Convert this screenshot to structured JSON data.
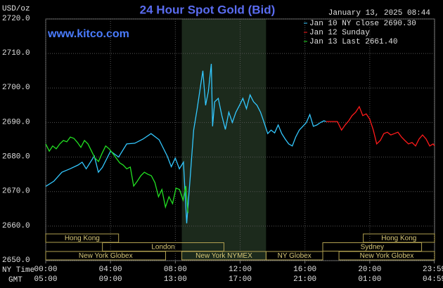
{
  "chart_data": {
    "type": "line",
    "title": "24 Hour Spot Gold (Bid)",
    "y_label": "USD/oz",
    "timestamp": "January 13, 2025 08:44",
    "site": "www.kitco.com",
    "x_label": "NY Time",
    "x2_label": "GMT",
    "xlim": [
      0,
      24
    ],
    "ylim": [
      2650,
      2720
    ],
    "yticks": [
      {
        "value": 2650,
        "label": "2650.0"
      },
      {
        "value": 2660,
        "label": "2660.0"
      },
      {
        "value": 2670,
        "label": "2670.0"
      },
      {
        "value": 2680,
        "label": "2680.0"
      },
      {
        "value": 2690,
        "label": "2690.0"
      },
      {
        "value": 2700,
        "label": "2700.0"
      },
      {
        "value": 2710,
        "label": "2710.0"
      },
      {
        "value": 2720,
        "label": "2720.0"
      }
    ],
    "xticks": [
      {
        "value": 0,
        "label": "00:00"
      },
      {
        "value": 4,
        "label": "04:00"
      },
      {
        "value": 8,
        "label": "08:00"
      },
      {
        "value": 12,
        "label": "12:00"
      },
      {
        "value": 16,
        "label": "16:00"
      },
      {
        "value": 20,
        "label": "20:00"
      },
      {
        "value": 23.98,
        "label": "23:59"
      }
    ],
    "x2ticks": [
      {
        "value": 0,
        "label": "05:00"
      },
      {
        "value": 4,
        "label": "09:00"
      },
      {
        "value": 8,
        "label": "13:00"
      },
      {
        "value": 12,
        "label": "17:00"
      },
      {
        "value": 16,
        "label": "21:00"
      },
      {
        "value": 20,
        "label": "01:00"
      },
      {
        "value": 23.98,
        "label": "04:59"
      }
    ],
    "grid": true,
    "series": [
      {
        "name": "Jan 10 NY close 2690.30",
        "color": "#33c8ff",
        "x": [
          0,
          0.5,
          1,
          1.5,
          2,
          2.25,
          2.5,
          3,
          3.25,
          3.5,
          4,
          4.5,
          5,
          5.5,
          6,
          6.5,
          7,
          7.5,
          7.75,
          8,
          8.25,
          8.5,
          8.7,
          8.91,
          9.13,
          9.35,
          9.57,
          9.7,
          9.87,
          10.04,
          10.22,
          10.3,
          10.43,
          10.65,
          10.87,
          11.09,
          11.3,
          11.52,
          11.74,
          11.96,
          12.17,
          12.39,
          12.61,
          12.83,
          13.04,
          13.26,
          13.48,
          13.7,
          13.91,
          14.13,
          14.35,
          14.57,
          14.78,
          15,
          15.22,
          15.43,
          15.65,
          15.87,
          16.09,
          16.3,
          16.52,
          16.74,
          16.96,
          17.17,
          17.3
        ],
        "values": [
          2671.5,
          2673,
          2675.6,
          2676.6,
          2677.7,
          2678.5,
          2676.6,
          2680.3,
          2675.6,
          2677,
          2681.7,
          2680,
          2683.8,
          2684,
          2685.2,
          2686.8,
          2685,
          2680.3,
          2677.2,
          2679.7,
          2676.6,
          2678.5,
          2660.8,
          2673.6,
          2687.8,
          2694,
          2701,
          2705,
          2695,
          2699,
          2707,
          2688.9,
          2696,
          2697,
          2692,
          2688,
          2693,
          2690,
          2693,
          2695,
          2697,
          2694,
          2698,
          2696,
          2695,
          2693,
          2690,
          2686.8,
          2687.8,
          2687,
          2689.3,
          2686.8,
          2685.2,
          2683.8,
          2683.2,
          2685.8,
          2687.8,
          2688.9,
          2690,
          2692.3,
          2688.9,
          2689.3,
          2690,
          2690.5,
          2690.3
        ]
      },
      {
        "name": "Jan 12 Sunday",
        "color": "#ff1a1a",
        "x": [
          17.3,
          18,
          18.26,
          18.48,
          18.7,
          18.91,
          19.13,
          19.35,
          19.57,
          19.78,
          20,
          20.22,
          20.43,
          20.65,
          20.87,
          21.09,
          21.3,
          21.52,
          21.74,
          21.96,
          22.17,
          22.39,
          22.61,
          22.83,
          23.04,
          23.26,
          23.48,
          23.7,
          23.91,
          24
        ],
        "values": [
          2690.3,
          2690.3,
          2687.8,
          2689.3,
          2690.5,
          2692,
          2693,
          2694.6,
          2692,
          2692.5,
          2691,
          2687.8,
          2683.8,
          2684.8,
          2686.8,
          2687.2,
          2686.4,
          2686.8,
          2687.2,
          2685.8,
          2684.8,
          2683.8,
          2684.2,
          2683.2,
          2685.2,
          2686.4,
          2685.2,
          2683.2,
          2683.8,
          2683.2
        ]
      },
      {
        "name": "Jan 13 Last 2661.40",
        "color": "#22e022",
        "x": [
          0,
          0.22,
          0.43,
          0.65,
          0.87,
          1.09,
          1.3,
          1.52,
          1.74,
          1.96,
          2.17,
          2.39,
          2.61,
          2.83,
          3.04,
          3.26,
          3.48,
          3.7,
          3.91,
          4.13,
          4.35,
          4.57,
          4.78,
          5,
          5.22,
          5.43,
          5.65,
          5.87,
          6.09,
          6.3,
          6.52,
          6.74,
          6.96,
          7.17,
          7.39,
          7.61,
          7.83,
          8.04,
          8.26,
          8.48,
          8.65,
          8.78
        ],
        "values": [
          2683.8,
          2681.7,
          2683.2,
          2682.4,
          2683.8,
          2684.8,
          2684.4,
          2685.8,
          2685.4,
          2684.2,
          2682.8,
          2684.8,
          2683.8,
          2681.7,
          2679.7,
          2678.7,
          2681.1,
          2683.2,
          2682.4,
          2681.1,
          2679.7,
          2678.3,
          2677.7,
          2676.6,
          2677.1,
          2671.6,
          2673,
          2674.6,
          2675.6,
          2675,
          2674.6,
          2672.6,
          2668.5,
          2670.6,
          2665.5,
          2668.5,
          2666.5,
          2671,
          2670.6,
          2667.5,
          2671.6,
          2663.8
        ]
      }
    ],
    "session_rows": [
      [
        {
          "label": "Hong Kong",
          "start": 0,
          "end": 4.5
        },
        {
          "label": "Hong Kong",
          "start": 19.6,
          "end": 24
        }
      ],
      [
        {
          "label": "London",
          "start": 3.5,
          "end": 11
        },
        {
          "label": "Sydney",
          "start": 17.1,
          "end": 23.2
        }
      ],
      [
        {
          "label": "New York Globex",
          "start": 0,
          "end": 7.4
        },
        {
          "label": "New York NYMEX",
          "start": 8.4,
          "end": 13.6,
          "shaded": true
        },
        {
          "label": "NY Globex",
          "start": 13.6,
          "end": 17.1
        },
        {
          "label": "New York Globex",
          "start": 18.1,
          "end": 24
        }
      ]
    ]
  }
}
